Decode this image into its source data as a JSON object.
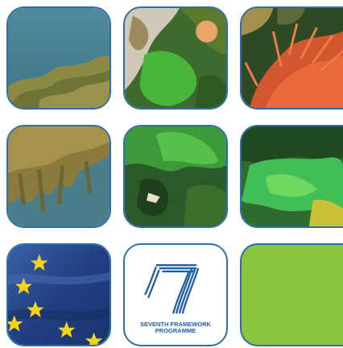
{
  "logo": {
    "line1": "SEVENTH FRAMEWORK",
    "line2": "PROGRAMME"
  },
  "colors": {
    "tile_border": "#2f6fa8",
    "eu_blue": "#2a4f9a",
    "eu_star": "#f3d21c",
    "lime_tile": "#8cc63f"
  }
}
